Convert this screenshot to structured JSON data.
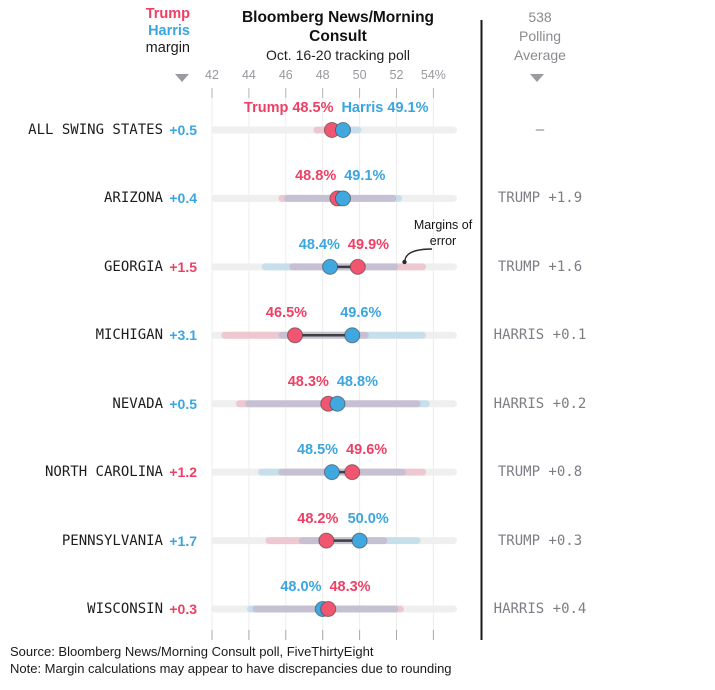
{
  "header": {
    "legend_trump": "Trump",
    "legend_harris": "Harris",
    "legend_margin": "margin",
    "title": "Bloomberg News/Morning Consult",
    "subtitle": "Oct. 16-20 tracking poll",
    "right_col": [
      "538",
      "Polling",
      "Average"
    ]
  },
  "annotation": {
    "line1": "Margins of",
    "line2": "error"
  },
  "footer": {
    "source": "Source: Bloomberg News/Morning Consult poll, FiveThirtyEight",
    "note": "Note: Margin calculations may appear to have discrepancies due to rounding"
  },
  "colors": {
    "trump": "#ee3f64",
    "harris": "#3ba5e0",
    "trump_dot": "#f15670",
    "harris_dot": "#41a8df",
    "avg_gray": "#7d7d85",
    "axis_gray": "#98989e",
    "header_gray": "#8a8a90",
    "grid": "#ececec",
    "track": "#efefef",
    "connector": "#3f3f3f"
  },
  "chart_data": {
    "type": "scatter",
    "title": "Bloomberg News/Morning Consult",
    "subtitle": "Oct. 16-20 tracking poll",
    "x_axis": {
      "range": [
        42,
        54
      ],
      "ticks": [
        42,
        44,
        46,
        48,
        50,
        52,
        54
      ],
      "tick_labels": [
        "42",
        "44",
        "46",
        "48",
        "50",
        "52",
        "54%"
      ],
      "grid": true
    },
    "series_legend": [
      "Trump",
      "Harris"
    ],
    "rows": [
      {
        "state": "ALL SWING STATES",
        "margin": "+0.5",
        "margin_leader": "harris",
        "trump_pct": 48.5,
        "harris_pct": 49.1,
        "trump_label": "Trump 48.5%",
        "harris_label": "Harris 49.1%",
        "moe_band": 1.0,
        "avg_538": "–"
      },
      {
        "state": "ARIZONA",
        "margin": "+0.4",
        "margin_leader": "harris",
        "trump_pct": 48.8,
        "harris_pct": 49.1,
        "trump_label": "48.8%",
        "harris_label": "49.1%",
        "moe_band": 3.2,
        "avg_538": "TRUMP +1.9"
      },
      {
        "state": "GEORGIA",
        "margin": "+1.5",
        "margin_leader": "trump",
        "trump_pct": 49.9,
        "harris_pct": 48.4,
        "trump_label": "49.9%",
        "harris_label": "48.4%",
        "moe_band": 3.7,
        "avg_538": "TRUMP +1.6"
      },
      {
        "state": "MICHIGAN",
        "margin": "+3.1",
        "margin_leader": "harris",
        "trump_pct": 46.5,
        "harris_pct": 49.6,
        "trump_label": "46.5%",
        "harris_label": "49.6%",
        "moe_band": 4.0,
        "avg_538": "HARRIS +0.1"
      },
      {
        "state": "NEVADA",
        "margin": "+0.5",
        "margin_leader": "harris",
        "trump_pct": 48.3,
        "harris_pct": 48.8,
        "trump_label": "48.3%",
        "harris_label": "48.8%",
        "moe_band": 5.0,
        "avg_538": "HARRIS +0.2"
      },
      {
        "state": "NORTH CAROLINA",
        "margin": "+1.2",
        "margin_leader": "trump",
        "trump_pct": 49.6,
        "harris_pct": 48.5,
        "trump_label": "49.6%",
        "harris_label": "48.5%",
        "moe_band": 4.0,
        "avg_538": "TRUMP +0.8"
      },
      {
        "state": "PENNSYLVANIA",
        "margin": "+1.7",
        "margin_leader": "harris",
        "trump_pct": 48.2,
        "harris_pct": 50.0,
        "trump_label": "48.2%",
        "harris_label": "50.0%",
        "moe_band": 3.3,
        "avg_538": "TRUMP +0.3"
      },
      {
        "state": "WISCONSIN",
        "margin": "+0.3",
        "margin_leader": "trump",
        "trump_pct": 48.3,
        "harris_pct": 48.0,
        "trump_label": "48.3%",
        "harris_label": "48.0%",
        "moe_band": 4.1,
        "avg_538": "HARRIS +0.4"
      }
    ],
    "annotation": {
      "text": "Margins of error",
      "points_to_row": "GEORGIA"
    }
  }
}
